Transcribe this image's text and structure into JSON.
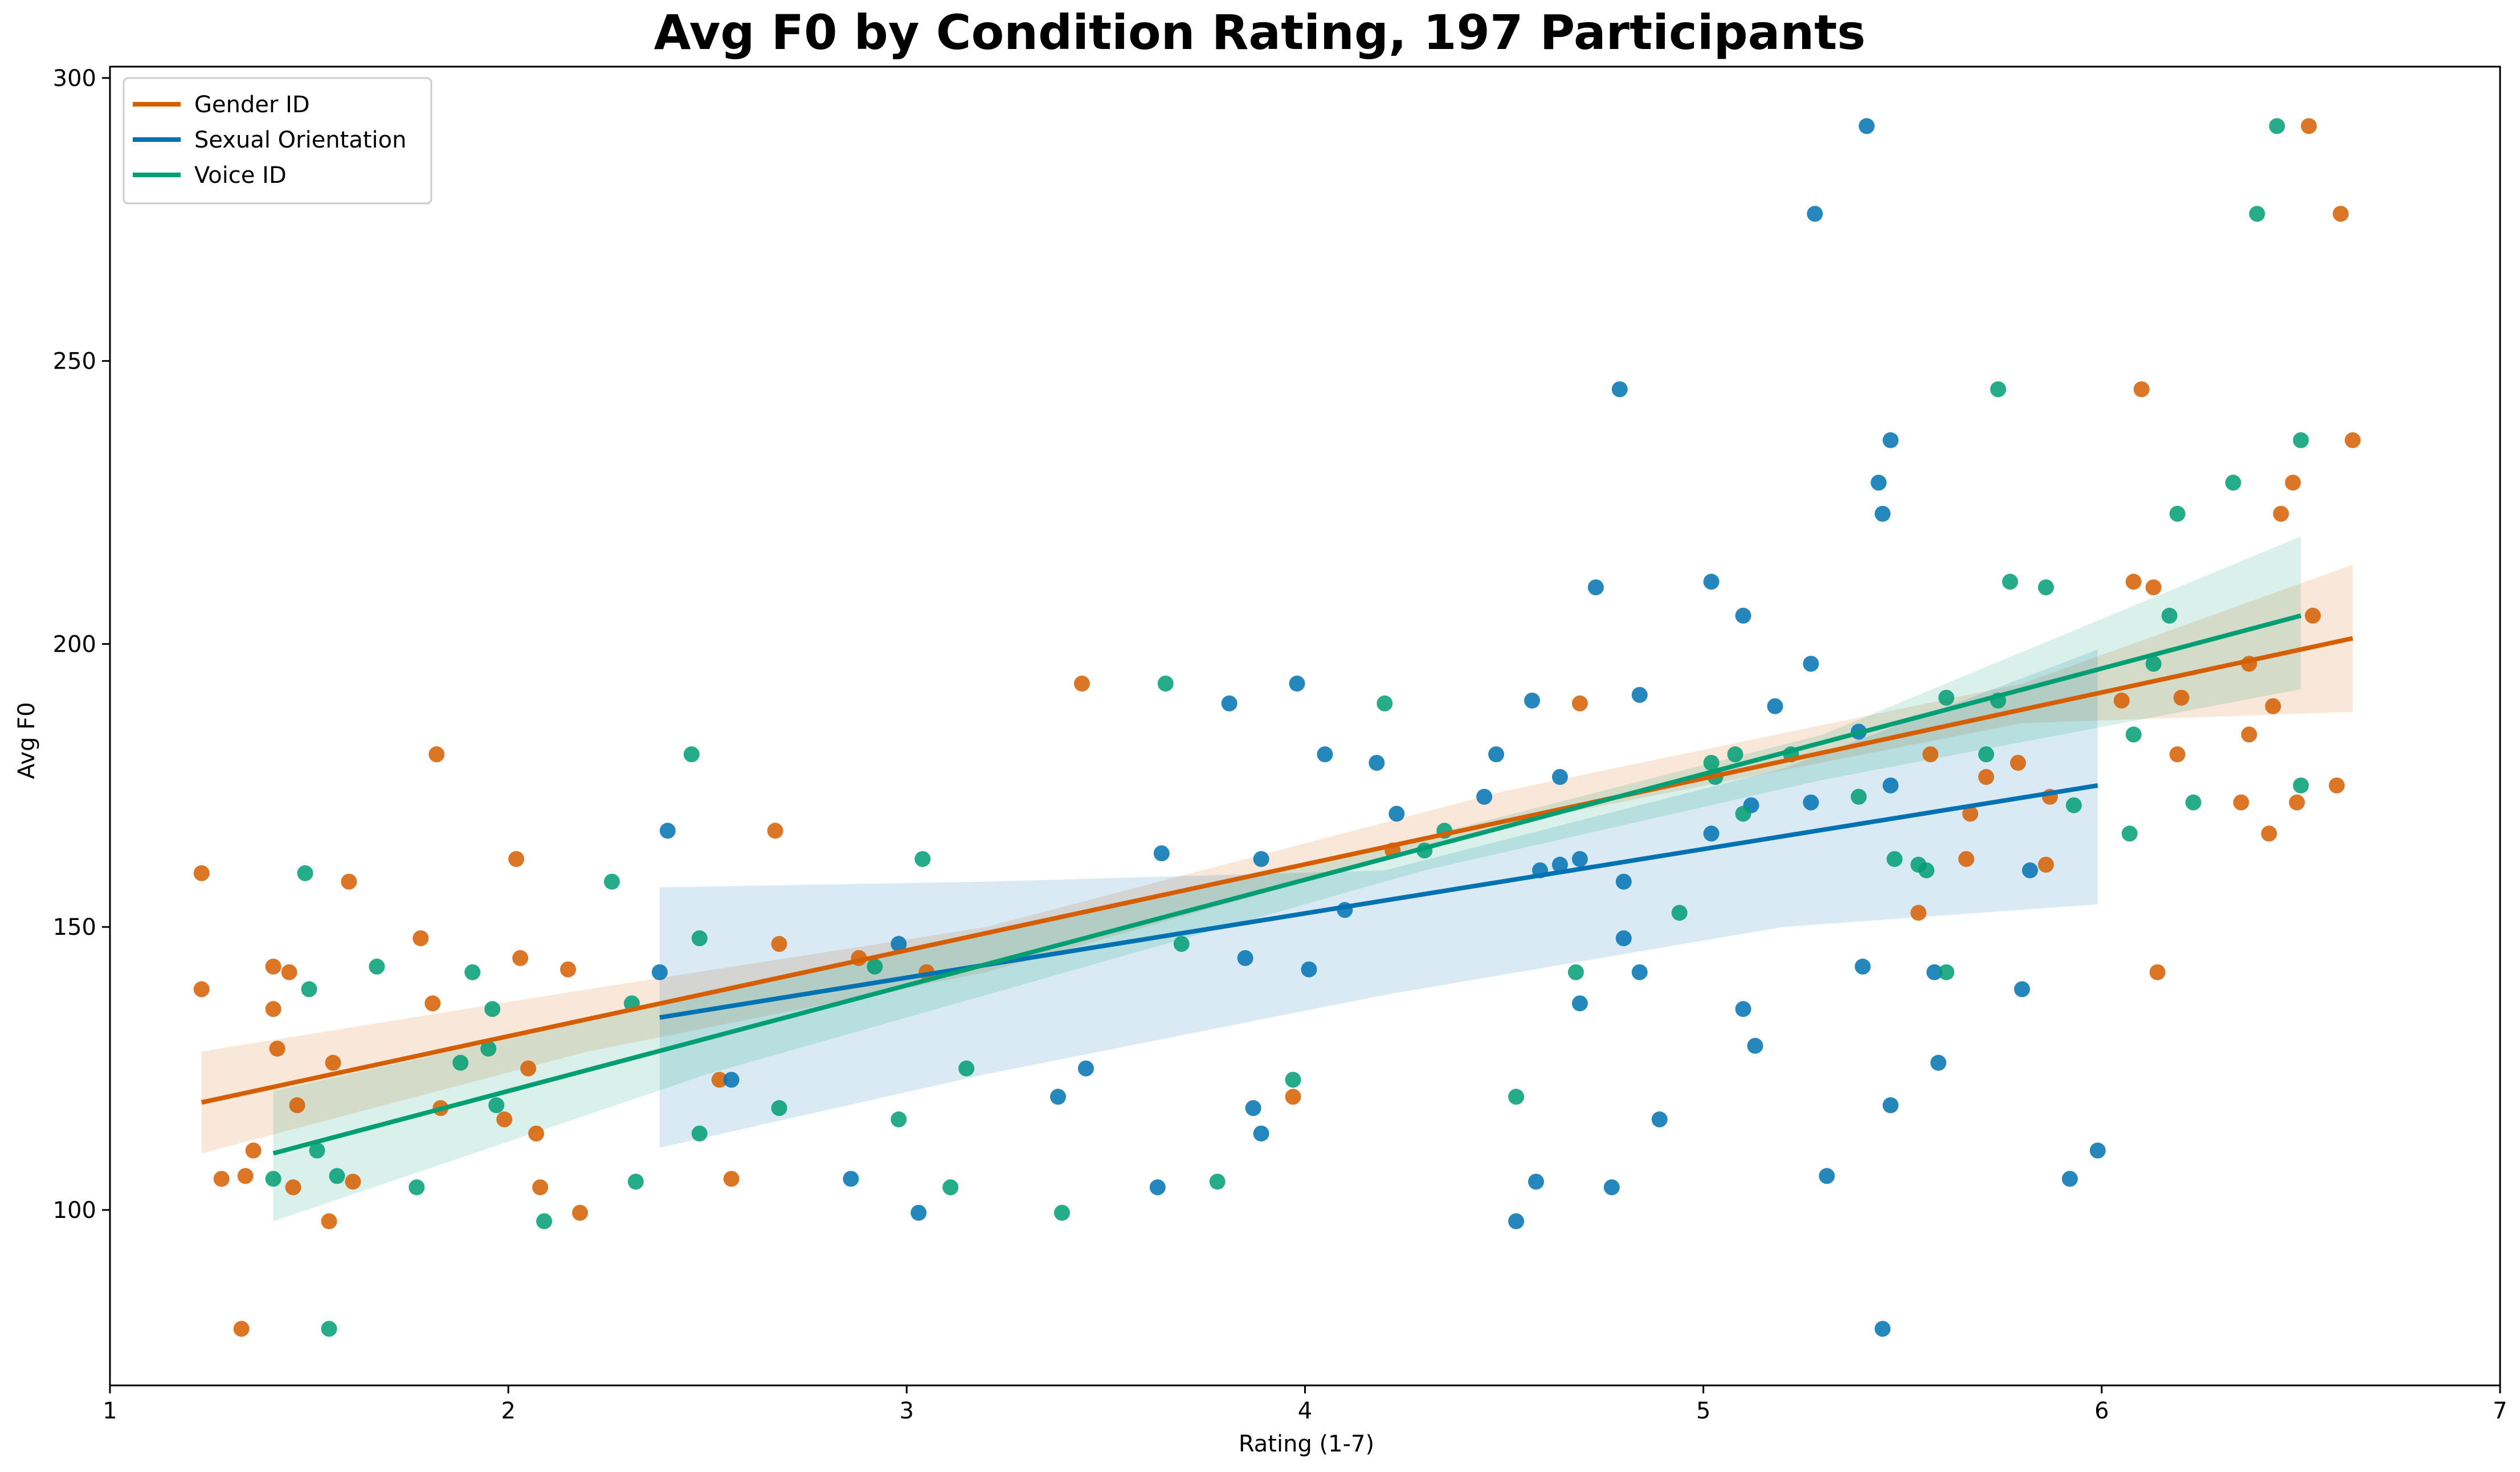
{
  "chart_data": {
    "type": "scatter",
    "title": "Avg F0 by Condition Rating, 197 Participants",
    "xlabel": "Rating (1-7)",
    "ylabel": "Avg F0",
    "xlim": [
      1,
      7
    ],
    "ylim": [
      69,
      302
    ],
    "xticks": [
      1,
      2,
      3,
      4,
      5,
      6,
      7
    ],
    "yticks": [
      100,
      150,
      200,
      250,
      300
    ],
    "grid": false,
    "legend_placement": "top-left",
    "series": [
      {
        "name": "Gender ID",
        "color": "#d55e00",
        "fit": {
          "x0": 1.23,
          "x1": 6.63,
          "y0": 119,
          "y1": 201
        },
        "band": {
          "lower": [
            110,
            128,
            142,
            168,
            186,
            188
          ],
          "upper": [
            128,
            139,
            150,
            174,
            193,
            214
          ],
          "x": [
            1.23,
            2.2,
            3.2,
            4.5,
            5.8,
            6.63
          ]
        },
        "points": [
          [
            1.23,
            159.5
          ],
          [
            1.23,
            139
          ],
          [
            1.28,
            105.5
          ],
          [
            1.33,
            79
          ],
          [
            1.34,
            106
          ],
          [
            1.36,
            110.5
          ],
          [
            1.41,
            135.5
          ],
          [
            1.41,
            143
          ],
          [
            1.42,
            128.5
          ],
          [
            1.45,
            142
          ],
          [
            1.46,
            104
          ],
          [
            1.47,
            118.5
          ],
          [
            1.55,
            98
          ],
          [
            1.56,
            126
          ],
          [
            1.6,
            158
          ],
          [
            1.61,
            105
          ],
          [
            1.78,
            148
          ],
          [
            1.81,
            136.5
          ],
          [
            1.82,
            180.5
          ],
          [
            1.83,
            118
          ],
          [
            1.99,
            116
          ],
          [
            2.02,
            162
          ],
          [
            2.03,
            144.5
          ],
          [
            2.05,
            125
          ],
          [
            2.07,
            113.5
          ],
          [
            2.08,
            104
          ],
          [
            2.15,
            142.5
          ],
          [
            2.18,
            99.5
          ],
          [
            2.53,
            123
          ],
          [
            2.56,
            105.5
          ],
          [
            2.67,
            167
          ],
          [
            2.68,
            147
          ],
          [
            2.88,
            144.5
          ],
          [
            3.05,
            142
          ],
          [
            3.44,
            193
          ],
          [
            3.97,
            120
          ],
          [
            4.22,
            163.5
          ],
          [
            4.69,
            189.5
          ],
          [
            5.57,
            180.5
          ],
          [
            5.54,
            152.5
          ],
          [
            5.67,
            170
          ],
          [
            5.66,
            162
          ],
          [
            5.71,
            176.5
          ],
          [
            5.79,
            179
          ],
          [
            5.86,
            161
          ],
          [
            5.87,
            173
          ],
          [
            6.05,
            190
          ],
          [
            6.08,
            211
          ],
          [
            6.1,
            245
          ],
          [
            6.13,
            210
          ],
          [
            6.14,
            142
          ],
          [
            6.19,
            180.5
          ],
          [
            6.2,
            190.5
          ],
          [
            6.35,
            172
          ],
          [
            6.37,
            184
          ],
          [
            6.37,
            196.5
          ],
          [
            6.42,
            166.5
          ],
          [
            6.43,
            189
          ],
          [
            6.45,
            223
          ],
          [
            6.48,
            228.5
          ],
          [
            6.49,
            172
          ],
          [
            6.52,
            291.5
          ],
          [
            6.53,
            205
          ],
          [
            6.59,
            175
          ],
          [
            6.6,
            276
          ],
          [
            6.63,
            236
          ]
        ]
      },
      {
        "name": "Sexual Orientation",
        "color": "#0072b2",
        "fit": {
          "x0": 2.38,
          "x1": 5.99,
          "y0": 134,
          "y1": 175
        },
        "band": {
          "lower": [
            111,
            124,
            138,
            150,
            154
          ],
          "upper": [
            157,
            158,
            160,
            178,
            199
          ],
          "x": [
            2.38,
            3.2,
            4.2,
            5.2,
            5.99
          ]
        },
        "points": [
          [
            2.38,
            142
          ],
          [
            2.4,
            167
          ],
          [
            2.56,
            123
          ],
          [
            2.86,
            105.5
          ],
          [
            2.98,
            147
          ],
          [
            3.03,
            99.5
          ],
          [
            3.38,
            120
          ],
          [
            3.45,
            125
          ],
          [
            3.63,
            104
          ],
          [
            3.64,
            163
          ],
          [
            3.81,
            189.5
          ],
          [
            3.85,
            144.5
          ],
          [
            3.87,
            118
          ],
          [
            3.89,
            113.5
          ],
          [
            3.89,
            162
          ],
          [
            3.98,
            193
          ],
          [
            4.01,
            142.5
          ],
          [
            4.05,
            180.5
          ],
          [
            4.1,
            153
          ],
          [
            4.18,
            179
          ],
          [
            4.23,
            170
          ],
          [
            4.45,
            173
          ],
          [
            4.48,
            180.5
          ],
          [
            4.53,
            98
          ],
          [
            4.57,
            190
          ],
          [
            4.58,
            105
          ],
          [
            4.59,
            160
          ],
          [
            4.64,
            161
          ],
          [
            4.64,
            176.5
          ],
          [
            4.69,
            162
          ],
          [
            4.69,
            136.5
          ],
          [
            4.73,
            210
          ],
          [
            4.77,
            104
          ],
          [
            4.79,
            245
          ],
          [
            4.8,
            148
          ],
          [
            4.8,
            158
          ],
          [
            4.84,
            142
          ],
          [
            4.84,
            191
          ],
          [
            4.89,
            116
          ],
          [
            5.02,
            211
          ],
          [
            5.02,
            166.5
          ],
          [
            5.1,
            205
          ],
          [
            5.1,
            135.5
          ],
          [
            5.12,
            171.5
          ],
          [
            5.13,
            129
          ],
          [
            5.18,
            189
          ],
          [
            5.27,
            172
          ],
          [
            5.27,
            196.5
          ],
          [
            5.28,
            276
          ],
          [
            5.31,
            106
          ],
          [
            5.39,
            184.5
          ],
          [
            5.4,
            143
          ],
          [
            5.41,
            291.5
          ],
          [
            5.44,
            228.5
          ],
          [
            5.45,
            79
          ],
          [
            5.45,
            223
          ],
          [
            5.47,
            236
          ],
          [
            5.47,
            175
          ],
          [
            5.47,
            118.5
          ],
          [
            5.58,
            142
          ],
          [
            5.59,
            126
          ],
          [
            5.8,
            139
          ],
          [
            5.82,
            160
          ],
          [
            5.92,
            105.5
          ],
          [
            5.99,
            110.5
          ]
        ]
      },
      {
        "name": "Voice ID",
        "color": "#009e73",
        "fit": {
          "x0": 1.41,
          "x1": 6.5,
          "y0": 110,
          "y1": 205
        },
        "band": {
          "lower": [
            98,
            124,
            160,
            176,
            192
          ],
          "upper": [
            121,
            138,
            166,
            184,
            219
          ],
          "x": [
            1.41,
            2.5,
            4.3,
            5.3,
            6.5
          ]
        },
        "points": [
          [
            1.41,
            105.5
          ],
          [
            1.49,
            159.5
          ],
          [
            1.5,
            139
          ],
          [
            1.52,
            110.5
          ],
          [
            1.55,
            79
          ],
          [
            1.57,
            106
          ],
          [
            1.67,
            143
          ],
          [
            1.77,
            104
          ],
          [
            1.88,
            126
          ],
          [
            1.91,
            142
          ],
          [
            1.95,
            128.5
          ],
          [
            1.96,
            135.5
          ],
          [
            1.97,
            118.5
          ],
          [
            2.09,
            98
          ],
          [
            2.26,
            158
          ],
          [
            2.31,
            136.5
          ],
          [
            2.32,
            105
          ],
          [
            2.46,
            180.5
          ],
          [
            2.48,
            148
          ],
          [
            2.48,
            113.5
          ],
          [
            2.68,
            118
          ],
          [
            2.92,
            143
          ],
          [
            2.98,
            116
          ],
          [
            3.04,
            162
          ],
          [
            3.11,
            104
          ],
          [
            3.15,
            125
          ],
          [
            3.39,
            99.5
          ],
          [
            3.65,
            193
          ],
          [
            3.69,
            147
          ],
          [
            3.78,
            105
          ],
          [
            3.97,
            123
          ],
          [
            4.2,
            189.5
          ],
          [
            4.3,
            163.5
          ],
          [
            4.35,
            167
          ],
          [
            4.53,
            120
          ],
          [
            4.68,
            142
          ],
          [
            4.94,
            152.5
          ],
          [
            5.02,
            179
          ],
          [
            5.03,
            176.5
          ],
          [
            5.08,
            180.5
          ],
          [
            5.1,
            170
          ],
          [
            5.22,
            180.5
          ],
          [
            5.39,
            173
          ],
          [
            5.48,
            162
          ],
          [
            5.54,
            161
          ],
          [
            5.56,
            160
          ],
          [
            5.61,
            190.5
          ],
          [
            5.61,
            142
          ],
          [
            5.71,
            180.5
          ],
          [
            5.74,
            190
          ],
          [
            5.74,
            245
          ],
          [
            5.77,
            211
          ],
          [
            5.86,
            210
          ],
          [
            5.93,
            171.5
          ],
          [
            6.07,
            166.5
          ],
          [
            6.08,
            184
          ],
          [
            6.13,
            196.5
          ],
          [
            6.17,
            205
          ],
          [
            6.19,
            223
          ],
          [
            6.23,
            172
          ],
          [
            6.33,
            228.5
          ],
          [
            6.39,
            276
          ],
          [
            6.44,
            291.5
          ],
          [
            6.5,
            236
          ],
          [
            6.5,
            175
          ]
        ]
      }
    ]
  }
}
